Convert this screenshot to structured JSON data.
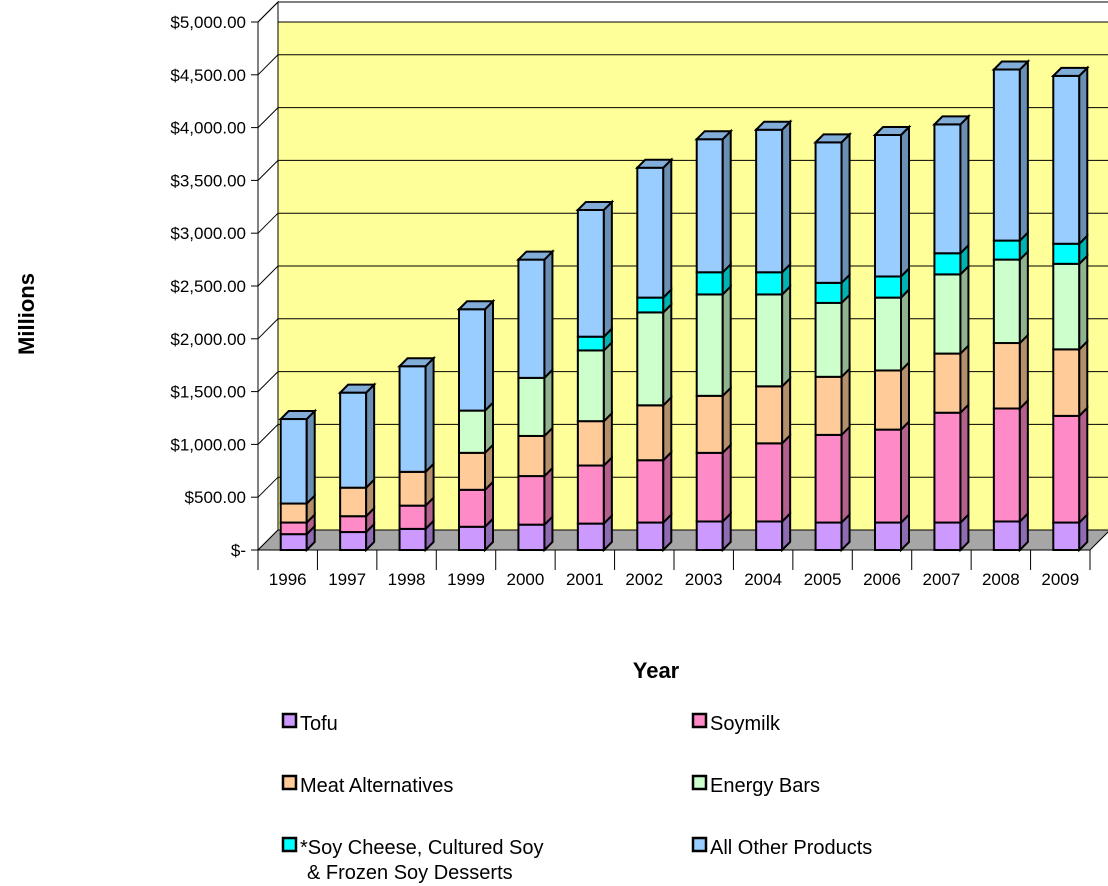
{
  "chart_data": {
    "type": "bar",
    "stacked": true,
    "three_d": true,
    "title": "",
    "xlabel": "Year",
    "ylabel": "Millions",
    "ylim": [
      0,
      5000
    ],
    "y_tick_labels": [
      "$-",
      "$500.00",
      "$1,000.00",
      "$1,500.00",
      "$2,000.00",
      "$2,500.00",
      "$3,000.00",
      "$3,500.00",
      "$4,000.00",
      "$4,500.00",
      "$5,000.00"
    ],
    "categories": [
      "1996",
      "1997",
      "1998",
      "1999",
      "2000",
      "2001",
      "2002",
      "2003",
      "2004",
      "2005",
      "2006",
      "2007",
      "2008",
      "2009"
    ],
    "grid": true,
    "plot_background": "#ffff99",
    "floor_color": "#a6a6a6",
    "legend_position": "bottom",
    "series": [
      {
        "name": "Tofu",
        "color": "#cc99ff",
        "values": [
          150,
          170,
          200,
          220,
          240,
          250,
          260,
          270,
          270,
          260,
          260,
          260,
          270,
          260
        ]
      },
      {
        "name": "Soymilk",
        "color": "#ff8ac8",
        "values": [
          110,
          150,
          220,
          350,
          460,
          550,
          590,
          650,
          740,
          830,
          880,
          1040,
          1070,
          1010
        ]
      },
      {
        "name": "Meat Alternatives",
        "color": "#ffcc99",
        "values": [
          180,
          270,
          320,
          350,
          380,
          420,
          520,
          540,
          540,
          550,
          560,
          560,
          620,
          630
        ]
      },
      {
        "name": "Energy Bars",
        "color": "#ccffcc",
        "values": [
          0,
          0,
          0,
          400,
          550,
          670,
          880,
          960,
          870,
          700,
          690,
          750,
          790,
          810
        ]
      },
      {
        "name": "*Soy Cheese, Cultured Soy & Frozen Soy Desserts",
        "color": "#00ffff",
        "values": [
          0,
          0,
          0,
          0,
          0,
          130,
          140,
          210,
          210,
          190,
          200,
          200,
          180,
          190
        ]
      },
      {
        "name": "All Other Products",
        "color": "#99ccff",
        "values": [
          800,
          900,
          1000,
          960,
          1120,
          1200,
          1230,
          1260,
          1350,
          1330,
          1340,
          1220,
          1620,
          1590
        ]
      }
    ],
    "legend_lines": [
      [
        "Tofu"
      ],
      [
        "Soymilk"
      ],
      [
        "Meat Alternatives"
      ],
      [
        "Energy Bars"
      ],
      [
        "*Soy Cheese, Cultured Soy",
        "& Frozen Soy Desserts"
      ],
      [
        "All Other Products"
      ]
    ]
  }
}
